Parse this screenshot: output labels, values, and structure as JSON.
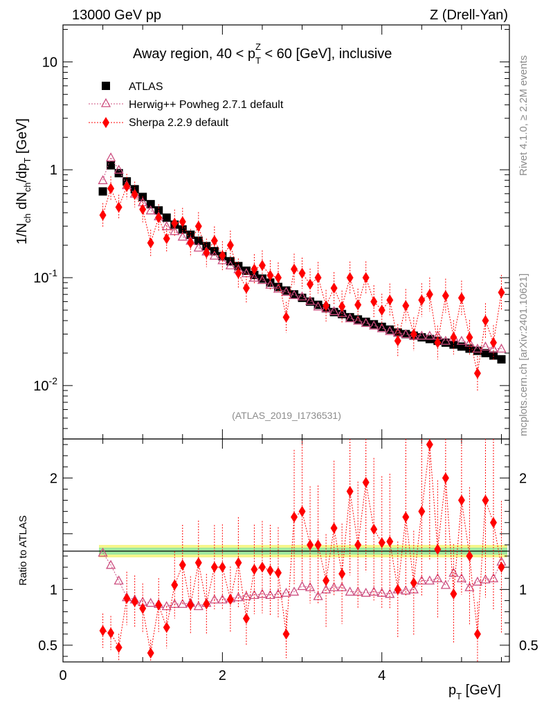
{
  "header": {
    "energy": "13000 GeV pp",
    "process": "Z (Drell-Yan)",
    "rivet": "Rivet 4.1.0, ≥ 2.2M events",
    "mcplots": "mcplots.cern.ch [arXiv:2401.10621]"
  },
  "chart_data": {
    "type": "scatter",
    "title": "Away region, 40 < p_T^Z < 60 [GeV], inclusive",
    "title_parts": {
      "pre": "Away region, 40 < p",
      "sub": "T",
      "sup": "Z",
      "post": " < 60 [GeV], inclusive"
    },
    "analysis": "(ATLAS_2019_I1736531)",
    "xlabel": "p_T [GeV]",
    "ylabel": "1/N_ch dN_ch/dp_T [GeV]",
    "ratio_ylabel": "Ratio to ATLAS",
    "xlim": [
      0,
      5.6
    ],
    "ylim": [
      0.0032,
      22
    ],
    "ratio_ylim": [
      0.35,
      2.35
    ],
    "x_ticks": [
      "0",
      "2",
      "4"
    ],
    "y_ticks": [
      "10",
      "1",
      "10^-1",
      "10^-2"
    ],
    "ratio_ticks": [
      "0.5",
      "1",
      "2"
    ],
    "x": [
      0.5,
      0.6,
      0.7,
      0.8,
      0.9,
      1.0,
      1.1,
      1.2,
      1.3,
      1.4,
      1.5,
      1.6,
      1.7,
      1.8,
      1.9,
      2.0,
      2.1,
      2.2,
      2.3,
      2.4,
      2.5,
      2.6,
      2.7,
      2.8,
      2.9,
      3.0,
      3.1,
      3.2,
      3.3,
      3.4,
      3.5,
      3.6,
      3.7,
      3.8,
      3.9,
      4.0,
      4.1,
      4.2,
      4.3,
      4.4,
      4.5,
      4.6,
      4.7,
      4.8,
      4.9,
      5.0,
      5.1,
      5.2,
      5.3,
      5.4,
      5.5
    ],
    "series": [
      {
        "name": "ATLAS",
        "color": "#000000",
        "marker": "square",
        "values": [
          0.63,
          1.1,
          0.93,
          0.78,
          0.66,
          0.56,
          0.48,
          0.42,
          0.36,
          0.31,
          0.28,
          0.25,
          0.22,
          0.196,
          0.176,
          0.158,
          0.142,
          0.128,
          0.116,
          0.106,
          0.098,
          0.09,
          0.082,
          0.076,
          0.07,
          0.065,
          0.06,
          0.056,
          0.052,
          0.048,
          0.046,
          0.043,
          0.041,
          0.039,
          0.037,
          0.035,
          0.033,
          0.031,
          0.03,
          0.029,
          0.028,
          0.027,
          0.026,
          0.025,
          0.024,
          0.023,
          0.022,
          0.021,
          0.02,
          0.019,
          0.0175
        ]
      },
      {
        "name": "Herwig++ Powheg 2.7.1 default",
        "color": "#cc4c7e",
        "marker": "triangle",
        "values": [
          0.8,
          1.3,
          1.0,
          0.72,
          0.6,
          0.5,
          0.42,
          0.37,
          0.3,
          0.27,
          0.24,
          0.22,
          0.19,
          0.175,
          0.16,
          0.145,
          0.13,
          0.12,
          0.11,
          0.1,
          0.095,
          0.086,
          0.079,
          0.074,
          0.069,
          0.067,
          0.061,
          0.054,
          0.052,
          0.049,
          0.047,
          0.042,
          0.04,
          0.038,
          0.036,
          0.034,
          0.032,
          0.031,
          0.03,
          0.029,
          0.029,
          0.029,
          0.029,
          0.026,
          0.028,
          0.026,
          0.025,
          0.022,
          0.023,
          0.022,
          0.022
        ]
      },
      {
        "name": "Sherpa 2.2.9 default",
        "color": "#ff0000",
        "marker": "diamond",
        "values": [
          0.38,
          0.67,
          0.45,
          0.7,
          0.59,
          0.43,
          0.21,
          0.36,
          0.23,
          0.32,
          0.33,
          0.21,
          0.3,
          0.17,
          0.22,
          0.16,
          0.2,
          0.11,
          0.08,
          0.12,
          0.13,
          0.105,
          0.1,
          0.043,
          0.12,
          0.11,
          0.087,
          0.1,
          0.055,
          0.08,
          0.054,
          0.1,
          0.056,
          0.1,
          0.06,
          0.05,
          0.062,
          0.026,
          0.055,
          0.03,
          0.062,
          0.07,
          0.025,
          0.068,
          0.028,
          0.065,
          0.028,
          0.013,
          0.04,
          0.025,
          0.073
        ]
      }
    ],
    "ratio_series": [
      {
        "name": "Herwig++ Powheg 2.7.1 default",
        "values": [
          1.33,
          1.22,
          1.08,
          0.93,
          0.91,
          0.89,
          0.88,
          0.87,
          0.85,
          0.87,
          0.87,
          0.88,
          0.85,
          0.88,
          0.91,
          0.91,
          0.92,
          0.93,
          0.94,
          0.95,
          0.96,
          0.95,
          0.96,
          0.97,
          0.98,
          1.03,
          1.02,
          0.94,
          1.0,
          1.02,
          1.02,
          0.98,
          0.98,
          0.97,
          0.98,
          0.97,
          0.96,
          1.0,
          0.99,
          1.0,
          1.08,
          1.08,
          1.1,
          1.04,
          1.15,
          1.1,
          1.02,
          1.07,
          1.09,
          1.1,
          1.25
        ]
      },
      {
        "name": "Sherpa 2.2.9 default",
        "values": [
          0.63,
          0.61,
          0.48,
          0.92,
          0.89,
          0.83,
          0.43,
          0.86,
          0.66,
          1.04,
          1.22,
          0.86,
          1.24,
          0.87,
          1.2,
          1.2,
          0.91,
          1.24,
          0.74,
          1.18,
          1.2,
          1.17,
          1.15,
          0.6,
          1.65,
          1.7,
          1.4,
          1.4,
          1.08,
          1.55,
          1.14,
          1.88,
          1.4,
          1.96,
          1.54,
          1.42,
          1.43,
          1.0,
          1.65,
          1.06,
          1.7,
          2.3,
          1.36,
          2.0,
          0.96,
          1.8,
          1.3,
          0.6,
          1.8,
          1.6,
          1.2
        ]
      }
    ],
    "legend": [
      "ATLAS",
      "Herwig++ Powheg 2.7.1 default",
      "Sherpa 2.2.9 default"
    ]
  }
}
